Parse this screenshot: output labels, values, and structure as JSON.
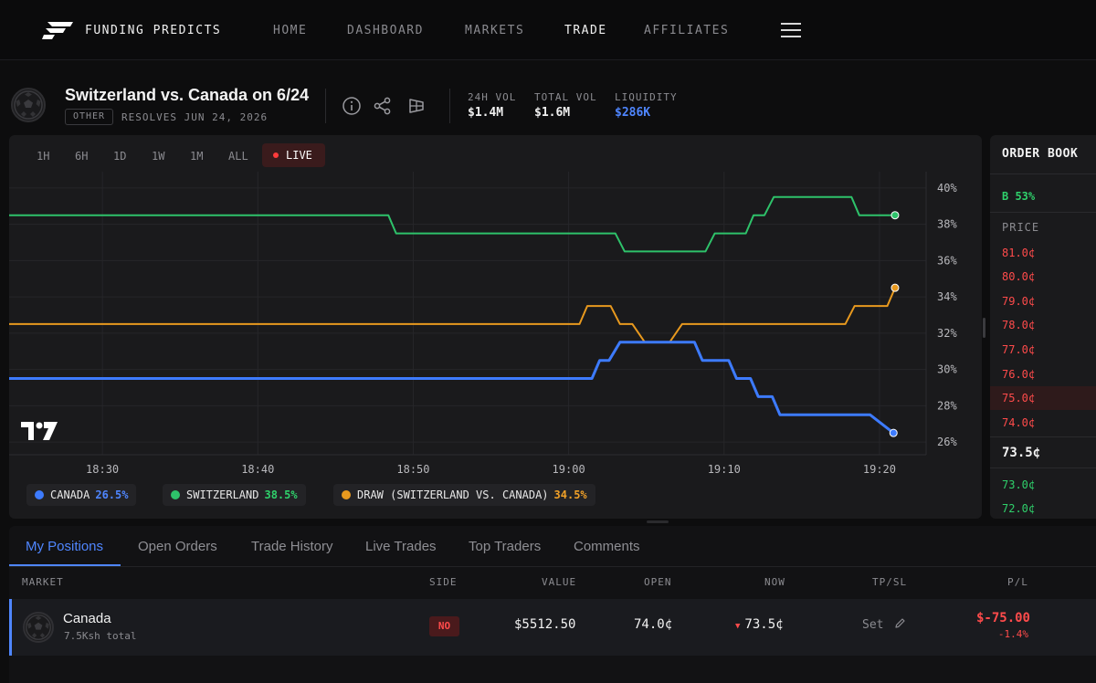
{
  "nav": {
    "brand": "FUNDING PREDICTS",
    "links": [
      "HOME",
      "DASHBOARD",
      "MARKETS",
      "TRADE",
      "AFFILIATES"
    ],
    "active": "TRADE"
  },
  "market": {
    "title": "Switzerland vs. Canada on 6/24",
    "tag": "OTHER",
    "resolves": "RESOLVES JUN 24, 2026",
    "stats": [
      {
        "label": "24H VOL",
        "value": "$1.4M"
      },
      {
        "label": "TOTAL VOL",
        "value": "$1.6M"
      },
      {
        "label": "LIQUIDITY",
        "value": "$286K"
      }
    ]
  },
  "timeframes": [
    "1H",
    "6H",
    "1D",
    "1W",
    "1M",
    "ALL"
  ],
  "live_label": "LIVE",
  "chart_data": {
    "type": "line",
    "x_ticks": [
      "18:30",
      "18:40",
      "18:50",
      "19:00",
      "19:10",
      "19:20"
    ],
    "y_ticks": [
      "26%",
      "28%",
      "30%",
      "32%",
      "34%",
      "36%",
      "38%",
      "40%"
    ],
    "ylim": [
      25.3,
      40.9
    ],
    "xlim": [
      "18:24",
      "19:23"
    ],
    "x_axis_position": "bottom",
    "y_axis_position": "right",
    "grid": true,
    "series": [
      {
        "name": "SWITZERLAND",
        "value_label": "38.5%",
        "color": "#2ec26a",
        "points": [
          [
            "18:24",
            38.5
          ],
          [
            "18:48.4",
            38.5
          ],
          [
            "18:48.9",
            37.5
          ],
          [
            "19:03.0",
            37.5
          ],
          [
            "19:03.6",
            36.5
          ],
          [
            "19:08.8",
            36.5
          ],
          [
            "19:09.4",
            37.5
          ],
          [
            "19:11.4",
            37.5
          ],
          [
            "19:11.9",
            38.5
          ],
          [
            "19:12.6",
            38.5
          ],
          [
            "19:13.2",
            39.5
          ],
          [
            "19:18.2",
            39.5
          ],
          [
            "19:18.7",
            38.5
          ],
          [
            "19:21.0",
            38.5
          ]
        ]
      },
      {
        "name": "DRAW (SWITZERLAND VS. CANADA)",
        "value_label": "34.5%",
        "color": "#e8991e",
        "points": [
          [
            "18:24",
            32.5
          ],
          [
            "19:00.7",
            32.5
          ],
          [
            "19:01.2",
            33.5
          ],
          [
            "19:02.7",
            33.5
          ],
          [
            "19:03.3",
            32.5
          ],
          [
            "19:04.1",
            32.5
          ],
          [
            "19:04.9",
            31.5
          ],
          [
            "19:06.5",
            31.5
          ],
          [
            "19:07.3",
            32.5
          ],
          [
            "19:17.8",
            32.5
          ],
          [
            "19:18.4",
            33.5
          ],
          [
            "19:20.5",
            33.5
          ],
          [
            "19:21.0",
            34.5
          ]
        ]
      },
      {
        "name": "CANADA",
        "value_label": "26.5%",
        "color": "#3d7bff",
        "points": [
          [
            "18:24",
            29.5
          ],
          [
            "19:01.5",
            29.5
          ],
          [
            "19:02.0",
            30.5
          ],
          [
            "19:02.6",
            30.5
          ],
          [
            "19:03.3",
            31.5
          ],
          [
            "19:08.1",
            31.5
          ],
          [
            "19:08.6",
            30.5
          ],
          [
            "19:10.3",
            30.5
          ],
          [
            "19:10.8",
            29.5
          ],
          [
            "19:11.7",
            29.5
          ],
          [
            "19:12.2",
            28.5
          ],
          [
            "19:13.1",
            28.5
          ],
          [
            "19:13.6",
            27.5
          ],
          [
            "19:19.4",
            27.5
          ],
          [
            "19:20.9",
            26.5
          ]
        ]
      }
    ]
  },
  "orderbook": {
    "title": "ORDER BOOK",
    "bar": "B 53%",
    "price_header": "PRICE",
    "asks": [
      "81.0¢",
      "80.0¢",
      "79.0¢",
      "78.0¢",
      "77.0¢",
      "76.0¢",
      "75.0¢",
      "74.0¢"
    ],
    "mid": "73.5¢",
    "bids": [
      "73.0¢",
      "72.0¢"
    ]
  },
  "tabs": [
    "My Positions",
    "Open Orders",
    "Trade History",
    "Live Trades",
    "Top Traders",
    "Comments"
  ],
  "positions": {
    "headers": [
      "MARKET",
      "SIDE",
      "VALUE",
      "OPEN",
      "NOW",
      "TP/SL",
      "P/L"
    ],
    "rows": [
      {
        "market": "Canada",
        "sub": "7.5Ksh total",
        "side": "NO",
        "value": "$5512.50",
        "open": "74.0¢",
        "now": "73.5¢",
        "tpsl": "Set",
        "pl": "$-75.00",
        "pl_pct": "-1.4%"
      }
    ]
  },
  "colors": {
    "accent": "#4f86ff",
    "green": "#2ec26a",
    "orange": "#e8991e",
    "red": "#ff4b4b"
  }
}
